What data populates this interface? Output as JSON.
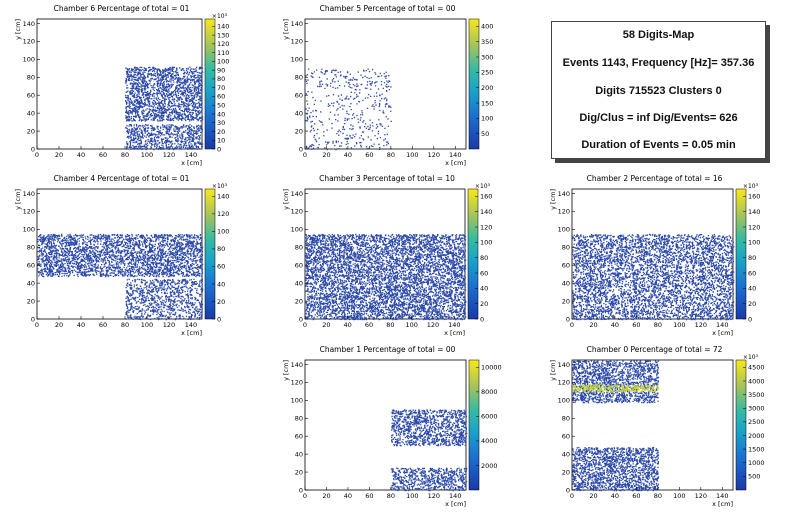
{
  "info": {
    "title": "58 Digits-Map",
    "events_line": "Events 1143, Frequency [Hz]= 357.36",
    "digits_line": "Digits 715523 Clusters 0",
    "digclus_line": "Dig/Clus = inf Dig/Events= 626",
    "duration_line": "Duration of Events = 0.05 min"
  },
  "chart_data": [
    {
      "type": "heatmap",
      "title": "Chamber 6 Percentage of total = 01",
      "xlabel": "x [cm]",
      "ylabel": "y [cm]",
      "xlim": [
        0,
        150
      ],
      "ylim": [
        0,
        145
      ],
      "x_ticks": [
        "0",
        "20",
        "40",
        "60",
        "80",
        "100",
        "120",
        "140"
      ],
      "y_ticks": [
        "0",
        "20",
        "40",
        "60",
        "80",
        "100",
        "120",
        "140"
      ],
      "z_ticks": [
        "0",
        "10",
        "20",
        "30",
        "40",
        "50",
        "60",
        "70",
        "80",
        "90",
        "100",
        "110",
        "120",
        "130",
        "140"
      ],
      "z_exponent_label": "×10³",
      "regions": [
        {
          "x": [
            80,
            150
          ],
          "y": [
            0,
            28
          ],
          "density": 0.7
        },
        {
          "x": [
            80,
            150
          ],
          "y": [
            32,
            92
          ],
          "density": 0.82
        }
      ]
    },
    {
      "type": "heatmap",
      "title": "Chamber 5 Percentage of total = 00",
      "xlabel": "x [cm]",
      "ylabel": "y [cm]",
      "xlim": [
        0,
        150
      ],
      "ylim": [
        0,
        145
      ],
      "x_ticks": [
        "0",
        "20",
        "40",
        "60",
        "80",
        "100",
        "120",
        "140"
      ],
      "y_ticks": [
        "0",
        "20",
        "40",
        "60",
        "80",
        "100",
        "120",
        "140"
      ],
      "z_ticks": [
        "50",
        "100",
        "150",
        "200",
        "250",
        "300",
        "350",
        "400"
      ],
      "z_exponent_label": "",
      "regions": [
        {
          "x": [
            0,
            80
          ],
          "y": [
            0,
            90
          ],
          "density": 0.12
        }
      ]
    },
    {
      "type": "heatmap",
      "title": "Chamber 4 Percentage of total = 01",
      "xlabel": "x [cm]",
      "ylabel": "y [cm]",
      "xlim": [
        0,
        150
      ],
      "ylim": [
        0,
        145
      ],
      "x_ticks": [
        "0",
        "20",
        "40",
        "60",
        "80",
        "100",
        "120",
        "140"
      ],
      "y_ticks": [
        "0",
        "20",
        "40",
        "60",
        "80",
        "100",
        "120",
        "140"
      ],
      "z_ticks": [
        "0",
        "20",
        "40",
        "60",
        "80",
        "100",
        "120",
        "140"
      ],
      "z_exponent_label": "×10³",
      "regions": [
        {
          "x": [
            0,
            150
          ],
          "y": [
            48,
            95
          ],
          "density": 0.8
        },
        {
          "x": [
            80,
            150
          ],
          "y": [
            0,
            45
          ],
          "density": 0.55
        }
      ]
    },
    {
      "type": "heatmap",
      "title": "Chamber 3 Percentage of total = 10",
      "xlabel": "x [cm]",
      "ylabel": "y [cm]",
      "xlim": [
        0,
        150
      ],
      "ylim": [
        0,
        145
      ],
      "x_ticks": [
        "0",
        "20",
        "40",
        "60",
        "80",
        "100",
        "120",
        "140"
      ],
      "y_ticks": [
        "0",
        "20",
        "40",
        "60",
        "80",
        "100",
        "120",
        "140"
      ],
      "z_ticks": [
        "0",
        "20",
        "40",
        "60",
        "80",
        "100",
        "120",
        "140",
        "160"
      ],
      "z_exponent_label": "×10³",
      "regions": [
        {
          "x": [
            0,
            150
          ],
          "y": [
            0,
            95
          ],
          "density": 0.82
        }
      ]
    },
    {
      "type": "heatmap",
      "title": "Chamber 2 Percentage of total = 16",
      "xlabel": "x [cm]",
      "ylabel": "y [cm]",
      "xlim": [
        0,
        150
      ],
      "ylim": [
        0,
        145
      ],
      "x_ticks": [
        "0",
        "20",
        "40",
        "60",
        "80",
        "100",
        "120",
        "140"
      ],
      "y_ticks": [
        "0",
        "20",
        "40",
        "60",
        "80",
        "100",
        "120",
        "140"
      ],
      "z_ticks": [
        "0",
        "20",
        "40",
        "60",
        "80",
        "100",
        "120",
        "140",
        "160"
      ],
      "z_exponent_label": "×10³",
      "regions": [
        {
          "x": [
            0,
            150
          ],
          "y": [
            0,
            95
          ],
          "density": 0.65
        }
      ]
    },
    {
      "type": "heatmap",
      "title": "Chamber 1 Percentage of total = 00",
      "xlabel": "x [cm]",
      "ylabel": "y [cm]",
      "xlim": [
        0,
        150
      ],
      "ylim": [
        0,
        145
      ],
      "x_ticks": [
        "0",
        "20",
        "40",
        "60",
        "80",
        "100",
        "120",
        "140"
      ],
      "y_ticks": [
        "0",
        "20",
        "40",
        "60",
        "80",
        "100",
        "120",
        "140"
      ],
      "z_ticks": [
        "2000",
        "4000",
        "6000",
        "8000",
        "10000"
      ],
      "z_exponent_label": "",
      "regions": [
        {
          "x": [
            80,
            150
          ],
          "y": [
            0,
            25
          ],
          "density": 0.7
        },
        {
          "x": [
            80,
            150
          ],
          "y": [
            50,
            90
          ],
          "density": 0.75
        }
      ]
    },
    {
      "type": "heatmap",
      "title": "Chamber 0 Percentage of total = 72",
      "xlabel": "x [cm]",
      "ylabel": "y [cm]",
      "xlim": [
        0,
        150
      ],
      "ylim": [
        0,
        145
      ],
      "x_ticks": [
        "0",
        "20",
        "40",
        "60",
        "80",
        "100",
        "120",
        "140"
      ],
      "y_ticks": [
        "0",
        "20",
        "40",
        "60",
        "80",
        "100",
        "120",
        "140"
      ],
      "z_ticks": [
        "500",
        "1000",
        "1500",
        "2000",
        "2500",
        "3000",
        "3500",
        "4000",
        "4500"
      ],
      "z_exponent_label": "×10³",
      "regions": [
        {
          "x": [
            0,
            80
          ],
          "y": [
            0,
            48
          ],
          "density": 0.82
        },
        {
          "x": [
            0,
            80
          ],
          "y": [
            98,
            145
          ],
          "density": 0.8
        },
        {
          "x": [
            0,
            80
          ],
          "y": [
            110,
            118
          ],
          "density": 0.9,
          "hot": true
        }
      ]
    }
  ]
}
